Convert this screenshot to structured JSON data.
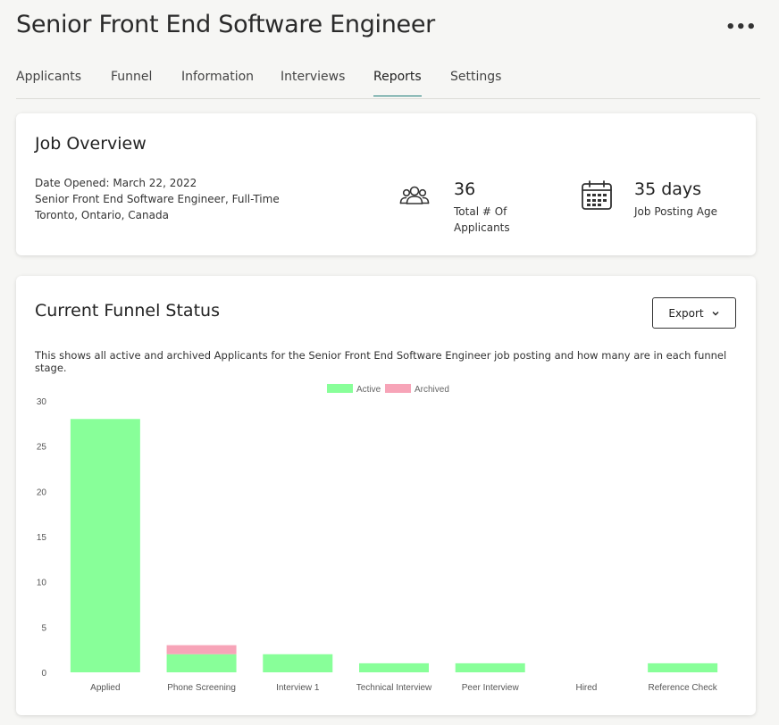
{
  "header": {
    "title": "Senior Front End Software Engineer",
    "more_icon": "more-horizontal-icon"
  },
  "tabs": [
    {
      "label": "Applicants",
      "active": false
    },
    {
      "label": "Funnel",
      "active": false
    },
    {
      "label": "Information",
      "active": false
    },
    {
      "label": "Interviews",
      "active": false
    },
    {
      "label": "Reports",
      "active": true
    },
    {
      "label": "Settings",
      "active": false
    }
  ],
  "overview": {
    "title": "Job Overview",
    "date_opened": "Date Opened: March 22, 2022",
    "position": "Senior Front End Software Engineer, Full-Time",
    "location": "Toronto, Ontario, Canada",
    "applicants": {
      "icon": "users-icon",
      "value": "36",
      "label_line1": "Total # Of",
      "label_line2": "Applicants"
    },
    "age": {
      "icon": "calendar-icon",
      "value": "35 days",
      "label": "Job Posting Age"
    }
  },
  "funnel": {
    "title": "Current Funnel Status",
    "export_label": "Export",
    "description": "This shows all active and archived Applicants for the Senior Front End Software Engineer job posting and how many are in each funnel stage."
  },
  "colors": {
    "active": "#88ff99",
    "archived": "#f7a4b8",
    "accent": "#1a7a75"
  },
  "chart_data": {
    "type": "bar",
    "stacked": true,
    "categories": [
      "Applied",
      "Phone Screening",
      "Interview 1",
      "Technical Interview",
      "Peer Interview",
      "Hired",
      "Reference Check"
    ],
    "series": [
      {
        "name": "Active",
        "values": [
          28,
          2,
          2,
          1,
          1,
          0,
          1
        ]
      },
      {
        "name": "Archived",
        "values": [
          0,
          1,
          0,
          0,
          0,
          0,
          0
        ]
      }
    ],
    "ylim": [
      0,
      30
    ],
    "yticks": [
      0,
      5,
      10,
      15,
      20,
      25,
      30
    ],
    "legend": "top-center",
    "grid": false
  }
}
